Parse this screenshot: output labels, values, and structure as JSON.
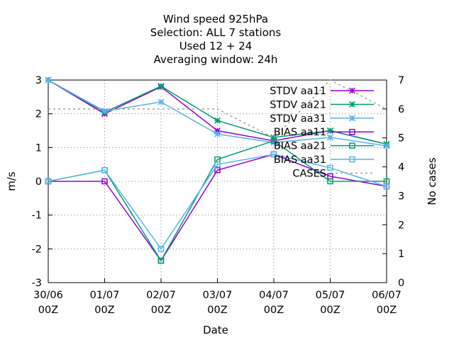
{
  "chart_data": {
    "type": "line",
    "title_lines": [
      "Wind speed 925hPa",
      "Selection: ALL       7 stations",
      "Used  12 + 24",
      "Averaging window: 24h"
    ],
    "xlabel": "Date",
    "ylabel": "m/s",
    "y2label": "No cases",
    "categories": [
      [
        "30/06",
        "00Z"
      ],
      [
        "01/07",
        "00Z"
      ],
      [
        "02/07",
        "00Z"
      ],
      [
        "03/07",
        "00Z"
      ],
      [
        "04/07",
        "00Z"
      ],
      [
        "05/07",
        "00Z"
      ],
      [
        "06/07",
        "00Z"
      ]
    ],
    "ylim": [
      -3,
      3
    ],
    "yticks": [
      -3,
      -2,
      -1,
      0,
      1,
      2,
      3
    ],
    "y2lim": [
      0,
      7
    ],
    "y2ticks": [
      0,
      1,
      2,
      3,
      4,
      5,
      6,
      7
    ],
    "grid": true,
    "legend_position": "top-right",
    "series": [
      {
        "name": "STDV aa11",
        "axis": "y",
        "color": "#9400d3",
        "marker": "star",
        "values": [
          3.0,
          2.0,
          2.8,
          1.5,
          1.2,
          1.5,
          1.1
        ]
      },
      {
        "name": "STDV aa21",
        "axis": "y",
        "color": "#009e73",
        "marker": "star",
        "values": [
          3.0,
          2.05,
          2.82,
          1.8,
          1.3,
          1.5,
          1.1
        ]
      },
      {
        "name": "STDV aa31",
        "axis": "y",
        "color": "#56b4e9",
        "marker": "star",
        "values": [
          3.0,
          2.08,
          2.35,
          1.4,
          1.15,
          1.3,
          1.05
        ]
      },
      {
        "name": "BIAS aa11",
        "axis": "y",
        "color": "#9400d3",
        "marker": "square",
        "values": [
          0.0,
          0.0,
          -2.35,
          0.33,
          0.8,
          0.15,
          -0.15
        ]
      },
      {
        "name": "BIAS aa21",
        "axis": "y",
        "color": "#009e73",
        "marker": "square",
        "values": [
          0.0,
          0.33,
          -2.35,
          0.65,
          1.2,
          0.0,
          0.0
        ]
      },
      {
        "name": "BIAS aa31",
        "axis": "y",
        "color": "#56b4e9",
        "marker": "square",
        "values": [
          0.0,
          0.33,
          -2.0,
          0.5,
          0.8,
          0.4,
          -0.15
        ]
      },
      {
        "name": "CASES",
        "axis": "y2",
        "color": "#a0a0a0",
        "marker": "none",
        "dashed": true,
        "values": [
          6,
          6,
          6,
          6,
          5,
          7,
          6
        ]
      }
    ]
  }
}
